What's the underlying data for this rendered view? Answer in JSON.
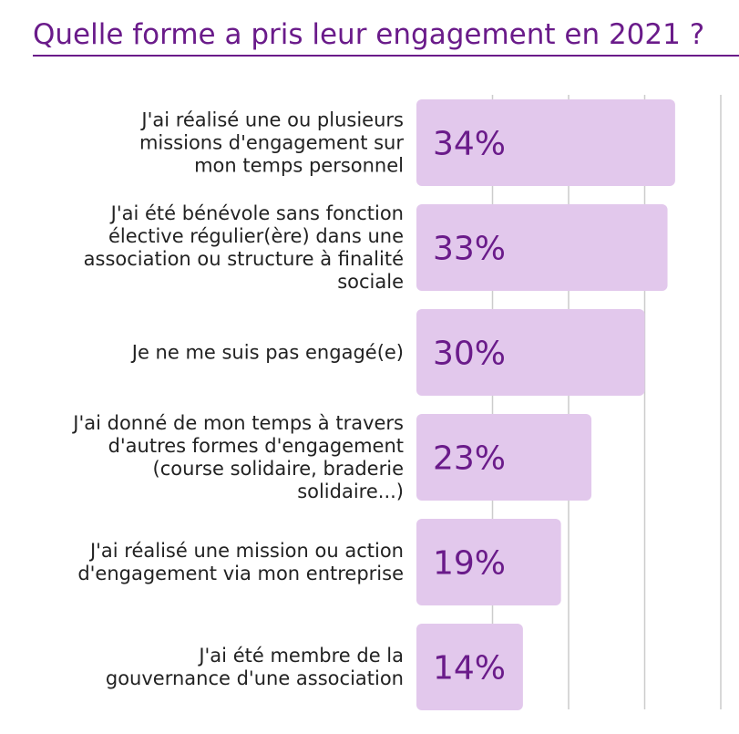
{
  "chart_data": {
    "type": "bar",
    "orientation": "horizontal",
    "title": "Quelle forme a pris leur engagement en 2021 ?",
    "categories": [
      [
        "J'ai réalisé une ou plusieurs",
        "missions d'engagement sur",
        "mon temps personnel"
      ],
      [
        "J'ai été bénévole sans fonction",
        "élective régulier(ère) dans une",
        "association ou structure à finalité",
        "sociale"
      ],
      [
        "Je ne me suis pas engagé(e)"
      ],
      [
        "J'ai donné de  mon temps à travers",
        "d'autres formes d'engagement",
        "(course solidaire, braderie",
        "solidaire...)"
      ],
      [
        "J'ai réalisé une mission ou action",
        "d'engagement  via mon entreprise"
      ],
      [
        "J'ai été membre de la",
        "gouvernance d'une association"
      ]
    ],
    "values": [
      34,
      33,
      30,
      23,
      19,
      14
    ],
    "value_labels": [
      "34%",
      "33%",
      "30%",
      "23%",
      "19%",
      "14%"
    ],
    "xlim": [
      0,
      40
    ],
    "grid": true,
    "colors": {
      "bar": "#e2c8ec",
      "value_text": "#6a1b8a",
      "grid": "#cccccc",
      "title": "#6a1b8a"
    }
  }
}
